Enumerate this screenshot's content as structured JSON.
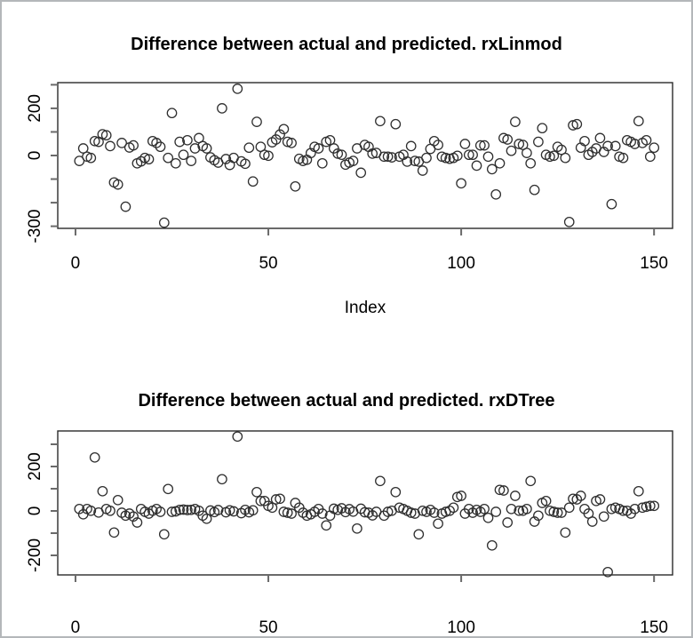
{
  "figure": {
    "background": "#ffffff",
    "border_color": "#b4b7ba",
    "point_color": "#2f2f2f",
    "axis_color": "#2a2a2a",
    "tick_color": "#6a6a6a"
  },
  "chart_data": [
    {
      "type": "scatter",
      "title": "Difference between actual and predicted. rxLinmod",
      "xlabel": "Index",
      "ylabel": "",
      "marker": "open-circle",
      "grid": false,
      "legend": null,
      "xlim": [
        -4.6,
        154.8
      ],
      "ylim": [
        -309,
        309
      ],
      "x_ticks": [
        {
          "value": 0,
          "label": "0"
        },
        {
          "value": 50,
          "label": "50"
        },
        {
          "value": 100,
          "label": "100"
        },
        {
          "value": 150,
          "label": "150"
        }
      ],
      "y_ticks": [
        {
          "value": 300,
          "label": ""
        },
        {
          "value": 200,
          "label": "200"
        },
        {
          "value": 100,
          "label": ""
        },
        {
          "value": 0,
          "label": "0"
        },
        {
          "value": -100,
          "label": ""
        },
        {
          "value": -200,
          "label": ""
        },
        {
          "value": -300,
          "label": "-300"
        }
      ],
      "x": {
        "from": 1,
        "to": 150,
        "step": 1
      },
      "y": [
        -23,
        30,
        -5,
        -10,
        61,
        58,
        90,
        86,
        40,
        -114,
        -123,
        53,
        -217,
        34,
        43,
        -33,
        -25,
        -10,
        -16,
        61,
        53,
        37,
        -285,
        -10,
        180,
        -33,
        58,
        3,
        65,
        -23,
        30,
        74,
        40,
        30,
        -8,
        -20,
        -30,
        200,
        -15,
        -40,
        -10,
        283,
        -25,
        -35,
        33,
        -110,
        143,
        37,
        3,
        -1,
        56,
        68,
        89,
        112,
        58,
        53,
        -131,
        -14,
        -23,
        -18,
        10,
        37,
        30,
        -33,
        58,
        65,
        30,
        8,
        3,
        -39,
        -30,
        -23,
        30,
        -73,
        45,
        37,
        8,
        11,
        146,
        -5,
        -5,
        -8,
        133,
        -5,
        3,
        -26,
        40,
        -23,
        -26,
        -64,
        -10,
        28,
        61,
        45,
        -5,
        -10,
        -14,
        -10,
        -1,
        -118,
        49,
        3,
        3,
        -43,
        43,
        43,
        -5,
        -58,
        -165,
        -33,
        74,
        68,
        20,
        143,
        49,
        45,
        11,
        -33,
        -146,
        58,
        116,
        3,
        -5,
        -1,
        37,
        24,
        -10,
        -282,
        128,
        133,
        33,
        61,
        3,
        15,
        30,
        74,
        15,
        40,
        -206,
        40,
        -5,
        -10,
        65,
        58,
        49,
        146,
        53,
        65,
        -5,
        33
      ]
    },
    {
      "type": "scatter",
      "title": "Difference between actual and predicted. rxDTree",
      "xlabel": "",
      "ylabel": "",
      "marker": "open-circle",
      "grid": false,
      "legend": null,
      "xlim": [
        -4.6,
        154.8
      ],
      "ylim": [
        -288,
        360
      ],
      "x_ticks": [
        {
          "value": 0,
          "label": "0"
        },
        {
          "value": 50,
          "label": "50"
        },
        {
          "value": 100,
          "label": "100"
        },
        {
          "value": 150,
          "label": "150"
        }
      ],
      "y_ticks": [
        {
          "value": 300,
          "label": ""
        },
        {
          "value": 200,
          "label": "200"
        },
        {
          "value": 100,
          "label": ""
        },
        {
          "value": 0,
          "label": "0"
        },
        {
          "value": -100,
          "label": ""
        },
        {
          "value": -200,
          "label": "-200"
        }
      ],
      "x": {
        "from": 1,
        "to": 150,
        "step": 1
      },
      "y": [
        9,
        -15,
        9,
        1,
        241,
        -7,
        89,
        9,
        1,
        -97,
        49,
        -8,
        -21,
        -12,
        -25,
        -52,
        9,
        -4,
        -12,
        1,
        9,
        -4,
        -105,
        99,
        -4,
        -2,
        5,
        6,
        4,
        5,
        9,
        1,
        -21,
        -35,
        2,
        -5,
        4,
        143,
        -6,
        3,
        -2,
        335,
        -10,
        5,
        -6,
        3,
        85,
        45,
        45,
        23,
        15,
        52,
        55,
        -4,
        -8,
        -12,
        36,
        15,
        -8,
        -21,
        -15,
        -4,
        9,
        -12,
        -65,
        -21,
        10,
        5,
        12,
        -5,
        8,
        -3,
        -79,
        10,
        -6,
        -8,
        -20,
        -4,
        135,
        -21,
        -4,
        1,
        85,
        15,
        9,
        1,
        -8,
        -12,
        -105,
        1,
        -4,
        5,
        -8,
        -57,
        -12,
        -4,
        1,
        15,
        63,
        68,
        -12,
        9,
        -8,
        5,
        -4,
        9,
        -31,
        -155,
        -4,
        95,
        92,
        -52,
        9,
        68,
        1,
        1,
        9,
        135,
        -48,
        -21,
        36,
        45,
        1,
        -4,
        -8,
        -8,
        -97,
        15,
        55,
        52,
        68,
        9,
        -12,
        -48,
        45,
        52,
        -25,
        -275,
        9,
        15,
        9,
        1,
        1,
        -12,
        9,
        89,
        15,
        19,
        23,
        23
      ]
    }
  ]
}
